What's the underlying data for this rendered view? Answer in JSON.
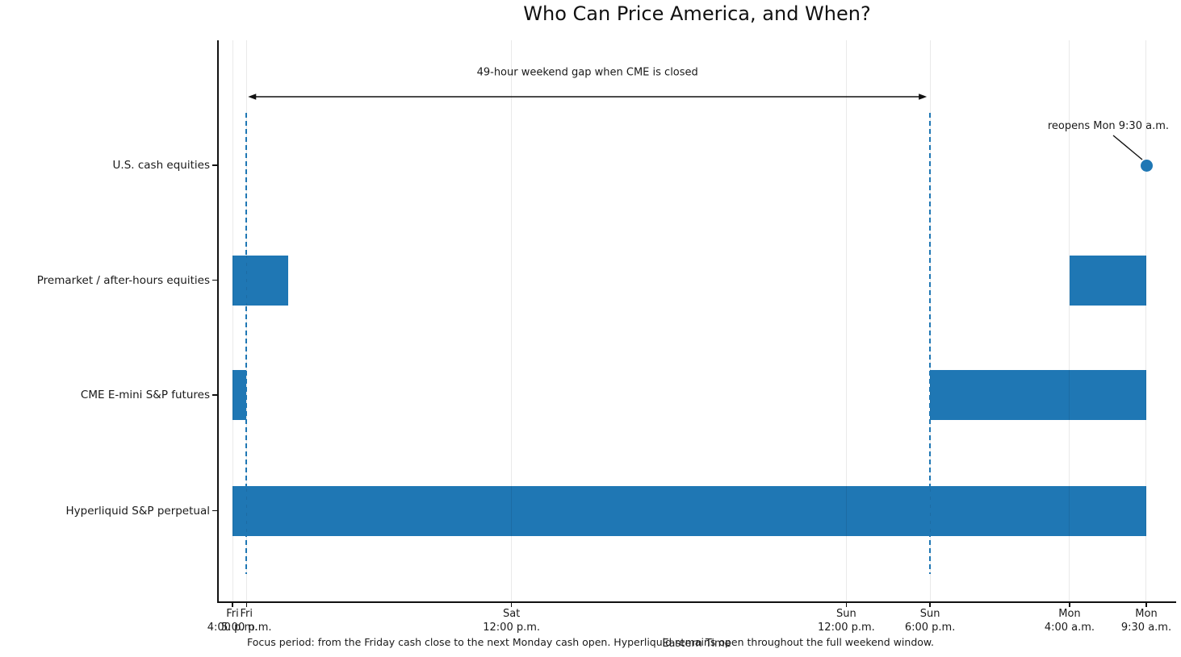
{
  "title": "Who Can Price America, and When?",
  "caption": "Focus period: from the Friday cash close to the next Monday cash open. Hyperliquid remains open throughout the full weekend window.",
  "axis": {
    "xlabel": "Eastern Time"
  },
  "annotations": {
    "gap": {
      "text": "49-hour weekend gap when CME is closed",
      "from_hours": 1,
      "to_hours": 50
    },
    "reopen": {
      "text": "reopens Mon 9:30 a.m.",
      "target_hours": 65.5,
      "target_row": "U.S. cash equities"
    }
  },
  "colors": {
    "bar": "#1f77b4",
    "dashed_line": "#1f77b4",
    "marker": "#1f77b4",
    "grid": "#e8e8e8",
    "text": "#1a1a1a"
  },
  "chart_data": {
    "type": "bar",
    "subtype": "horizontal-interval-timeline",
    "title": "Who Can Price America, and When?",
    "xlabel": "Eastern Time",
    "x_unit": "hours since Friday 4:00 p.m. ET",
    "x_ticks": [
      {
        "hours": 0,
        "day": "Fri",
        "time": "4:00 p.m."
      },
      {
        "hours": 1,
        "day": "Fri",
        "time": "5:00 p.m."
      },
      {
        "hours": 20,
        "day": "Sat",
        "time": "12:00 p.m."
      },
      {
        "hours": 44,
        "day": "Sun",
        "time": "12:00 p.m."
      },
      {
        "hours": 50,
        "day": "Sun",
        "time": "6:00 p.m."
      },
      {
        "hours": 60,
        "day": "Mon",
        "time": "4:00 a.m."
      },
      {
        "hours": 65.5,
        "day": "Mon",
        "time": "9:30 a.m."
      }
    ],
    "categories": [
      "U.S. cash equities",
      "Premarket / after-hours equities",
      "CME E-mini S&P futures",
      "Hyperliquid S&P perpetual"
    ],
    "series": [
      {
        "name": "U.S. cash equities",
        "intervals": [],
        "marker_hours": 65.5
      },
      {
        "name": "Premarket / after-hours equities",
        "intervals": [
          [
            0,
            4
          ],
          [
            60,
            65.5
          ]
        ]
      },
      {
        "name": "CME E-mini S&P futures",
        "intervals": [
          [
            0,
            1
          ],
          [
            50,
            65.5
          ]
        ]
      },
      {
        "name": "Hyperliquid S&P perpetual",
        "intervals": [
          [
            0,
            65.5
          ]
        ]
      }
    ],
    "vlines_hours": [
      1,
      50
    ],
    "grid": true,
    "legend": false
  }
}
